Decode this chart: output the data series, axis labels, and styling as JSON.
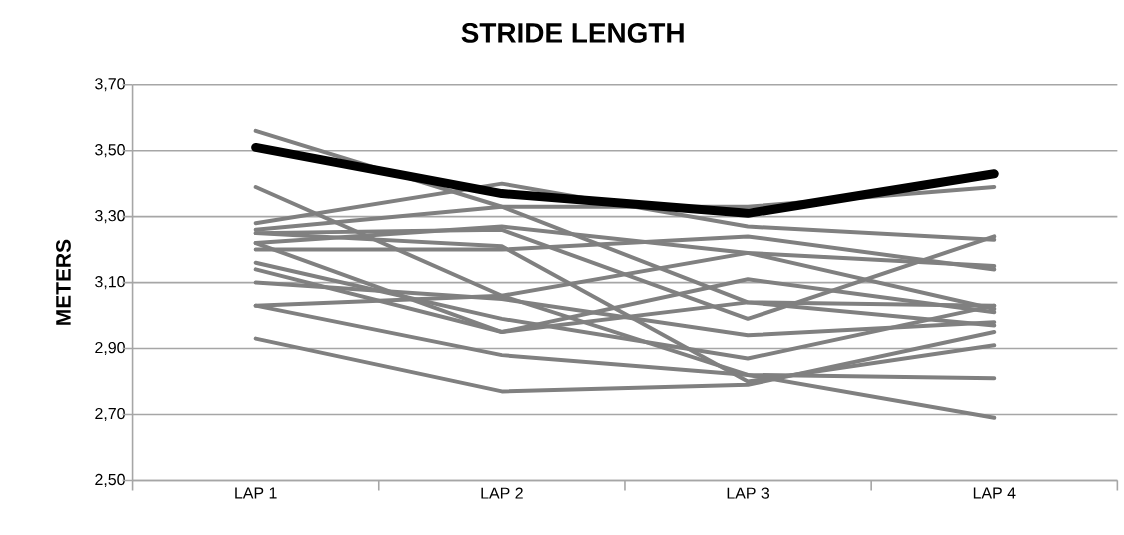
{
  "chart_data": {
    "type": "line",
    "title": "STRIDE LENGTH",
    "ylabel": "METERS",
    "categories": [
      "LAP 1",
      "LAP 2",
      "LAP 3",
      "LAP 4"
    ],
    "series": [
      {
        "color": "#000000",
        "values": [
          3.51,
          3.37,
          3.31,
          3.43
        ]
      },
      {
        "color": "#808080",
        "values": [
          3.56,
          3.33,
          3.04,
          2.97
        ]
      },
      {
        "color": "#808080",
        "values": [
          3.39,
          3.06,
          2.82,
          2.69
        ]
      },
      {
        "color": "#808080",
        "values": [
          3.28,
          3.4,
          3.27,
          3.23
        ]
      },
      {
        "color": "#808080",
        "values": [
          3.26,
          3.33,
          3.33,
          3.39
        ]
      },
      {
        "color": "#808080",
        "values": [
          3.25,
          3.26,
          2.99,
          3.24
        ]
      },
      {
        "color": "#808080",
        "values": [
          3.22,
          3.27,
          3.19,
          3.15
        ]
      },
      {
        "color": "#808080",
        "values": [
          3.2,
          3.2,
          3.24,
          3.14
        ]
      },
      {
        "color": "#808080",
        "values": [
          3.16,
          2.99,
          2.87,
          3.03
        ]
      },
      {
        "color": "#808080",
        "values": [
          3.14,
          2.95,
          3.11,
          3.01
        ]
      },
      {
        "color": "#808080",
        "values": [
          3.1,
          3.05,
          2.94,
          2.98
        ]
      },
      {
        "color": "#808080",
        "values": [
          3.03,
          3.06,
          3.19,
          3.02
        ]
      },
      {
        "color": "#808080",
        "values": [
          3.03,
          2.88,
          2.82,
          2.81
        ]
      },
      {
        "color": "#808080",
        "values": [
          2.93,
          2.77,
          2.79,
          2.95
        ]
      },
      {
        "color": "#808080",
        "values": [
          3.22,
          2.95,
          3.04,
          3.03
        ]
      },
      {
        "color": "#808080",
        "values": [
          3.25,
          3.21,
          2.8,
          2.91
        ]
      }
    ],
    "ylim": [
      2.5,
      3.7
    ],
    "yticks": [
      {
        "value": 2.5,
        "label": "2,50"
      },
      {
        "value": 2.7,
        "label": "2,70"
      },
      {
        "value": 2.9,
        "label": "2,90"
      },
      {
        "value": 3.1,
        "label": "3,10"
      },
      {
        "value": 3.3,
        "label": "3,30"
      },
      {
        "value": 3.5,
        "label": "3,50"
      },
      {
        "value": 3.7,
        "label": "3,70"
      }
    ],
    "grid": "y",
    "marker": "none",
    "line_style": "solid"
  }
}
